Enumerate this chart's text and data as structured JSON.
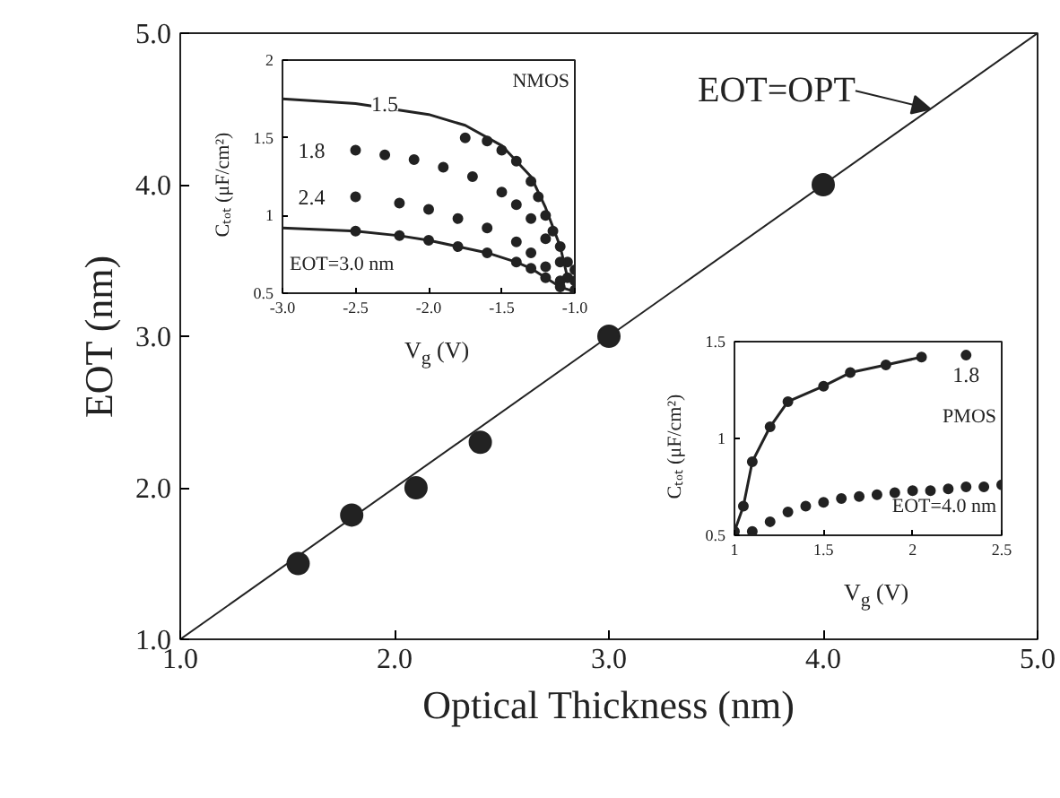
{
  "chart_data": [
    {
      "type": "scatter",
      "xlabel": "Optical Thickness (nm)",
      "ylabel": "EOT (nm)",
      "xlim": [
        1,
        5
      ],
      "ylim": [
        1,
        5
      ],
      "xticks": [
        {
          "value": 1,
          "label": "1.0"
        },
        {
          "value": 2,
          "label": "2.0"
        },
        {
          "value": 3,
          "label": "3.0"
        },
        {
          "value": 4,
          "label": "4.0"
        },
        {
          "value": 5,
          "label": "5.0"
        }
      ],
      "yticks": [
        {
          "value": 1,
          "label": "1.0"
        },
        {
          "value": 2,
          "label": "2.0"
        },
        {
          "value": 3,
          "label": "3.0"
        },
        {
          "value": 4,
          "label": "4.0"
        },
        {
          "value": 5,
          "label": "5.0"
        }
      ],
      "grid": false,
      "series": [
        {
          "type": "line",
          "color": "#222222",
          "x": [
            1,
            5
          ],
          "values": [
            1,
            5
          ]
        },
        {
          "marker": "circle",
          "color": "#222222",
          "x": [
            1.55,
            1.8,
            2.1,
            2.4,
            3.0,
            4.0
          ],
          "values": [
            1.5,
            1.82,
            2.0,
            2.3,
            3.0,
            4.0
          ]
        }
      ],
      "annotations": [
        {
          "text": "EOT=OPT",
          "x": 4.5,
          "y": 4.5
        }
      ]
    },
    {
      "type": "scatter",
      "xlabel": "V$_{g}$ (V)",
      "ylabel": "Cₜₒₜ (μF/cm²)",
      "xlim": [
        -3,
        -1
      ],
      "ylim": [
        0.5,
        2
      ],
      "xticks": [
        {
          "value": -3,
          "label": "-3.0"
        },
        {
          "value": -2.5,
          "label": "-2.5"
        },
        {
          "value": -2,
          "label": "-2.0"
        },
        {
          "value": -1.5,
          "label": "-1.5"
        },
        {
          "value": -1,
          "label": "-1.0"
        }
      ],
      "yticks": [
        0.5,
        1,
        1.5,
        2
      ],
      "grid": false,
      "series": [
        {
          "type": "line",
          "color": "#222222",
          "x": [
            -3,
            -2.5,
            -2.0,
            -1.75,
            -1.5,
            -1.3,
            -1.2,
            -1.1,
            -1.05
          ],
          "values": [
            1.75,
            1.72,
            1.65,
            1.58,
            1.45,
            1.25,
            1.05,
            0.8,
            0.6
          ]
        },
        {
          "marker": "circle",
          "color": "#222222",
          "x": [
            -1.75,
            -1.6,
            -1.5,
            -1.4,
            -1.3,
            -1.25,
            -1.2,
            -1.15,
            -1.1,
            -1.05,
            -1.0
          ],
          "values": [
            1.5,
            1.48,
            1.42,
            1.35,
            1.22,
            1.12,
            1.0,
            0.9,
            0.8,
            0.7,
            0.65
          ]
        },
        {
          "marker": "circle",
          "color": "#222222",
          "x": [
            -2.5,
            -2.3,
            -2.1,
            -1.9,
            -1.7,
            -1.5,
            -1.4,
            -1.3,
            -1.2,
            -1.1,
            -1.05,
            -1.0
          ],
          "values": [
            1.42,
            1.39,
            1.36,
            1.31,
            1.25,
            1.15,
            1.07,
            0.98,
            0.85,
            0.7,
            0.6,
            0.58
          ]
        },
        {
          "marker": "circle",
          "color": "#222222",
          "x": [
            -2.5,
            -2.2,
            -2.0,
            -1.8,
            -1.6,
            -1.4,
            -1.3,
            -1.2,
            -1.1,
            -1.0
          ],
          "values": [
            1.12,
            1.08,
            1.04,
            0.98,
            0.92,
            0.83,
            0.76,
            0.67,
            0.58,
            0.52
          ]
        },
        {
          "type": "line",
          "color": "#222222",
          "x": [
            -3,
            -2.5,
            -2.2,
            -2.0,
            -1.8,
            -1.6,
            -1.4,
            -1.3,
            -1.2,
            -1.1,
            -1.0
          ],
          "values": [
            0.92,
            0.9,
            0.87,
            0.84,
            0.8,
            0.76,
            0.7,
            0.66,
            0.6,
            0.54,
            0.51
          ]
        },
        {
          "type": "scatter",
          "marker": "circle",
          "color": "#222222",
          "x": [
            -2.5,
            -2.2,
            -2.0,
            -1.8,
            -1.6,
            -1.4,
            -1.3,
            -1.2,
            -1.1
          ],
          "values": [
            0.9,
            0.87,
            0.84,
            0.8,
            0.76,
            0.7,
            0.66,
            0.6,
            0.54
          ]
        }
      ],
      "annotations": [
        {
          "text": "1.5",
          "x": -2.3,
          "y": 1.72
        },
        {
          "text": "1.8",
          "x": -2.8,
          "y": 1.42
        },
        {
          "text": "2.4",
          "x": -2.8,
          "y": 1.12
        },
        "EOT=3.0 nm",
        "NMOS"
      ]
    },
    {
      "type": "scatter",
      "xlabel": "V$_{g}$ (V)",
      "ylabel": "Cₜₒₜ (μF/cm²)",
      "xlim": [
        1,
        2.5
      ],
      "ylim": [
        0.5,
        1.5
      ],
      "xticks": [
        1,
        1.5,
        2,
        2.5
      ],
      "yticks": [
        0.5,
        1,
        1.5
      ],
      "grid": false,
      "series": [
        {
          "type": "line",
          "color": "#222222",
          "x": [
            1.0,
            1.05,
            1.1,
            1.2,
            1.3,
            1.5,
            1.65,
            1.85,
            2.05
          ],
          "values": [
            0.52,
            0.65,
            0.88,
            1.06,
            1.19,
            1.27,
            1.34,
            1.38,
            1.42
          ]
        },
        {
          "marker": "circle",
          "color": "#222222",
          "x": [
            1.0,
            1.05,
            1.1,
            1.2,
            1.3,
            1.5,
            1.65,
            1.85,
            2.05,
            2.3
          ],
          "values": [
            0.52,
            0.65,
            0.88,
            1.06,
            1.19,
            1.27,
            1.34,
            1.38,
            1.42,
            1.43
          ]
        },
        {
          "marker": "circle",
          "color": "#222222",
          "x": [
            1.1,
            1.2,
            1.3,
            1.4,
            1.5,
            1.6,
            1.7,
            1.8,
            1.9,
            2.0,
            2.1,
            2.2,
            2.3,
            2.4,
            2.5
          ],
          "values": [
            0.52,
            0.57,
            0.62,
            0.65,
            0.67,
            0.69,
            0.7,
            0.71,
            0.72,
            0.73,
            0.73,
            0.74,
            0.75,
            0.75,
            0.76
          ]
        }
      ],
      "annotations": [
        {
          "text": "1.8",
          "x": 2.3,
          "y": 1.33
        },
        "PMOS",
        "EOT=4.0 nm"
      ]
    }
  ]
}
